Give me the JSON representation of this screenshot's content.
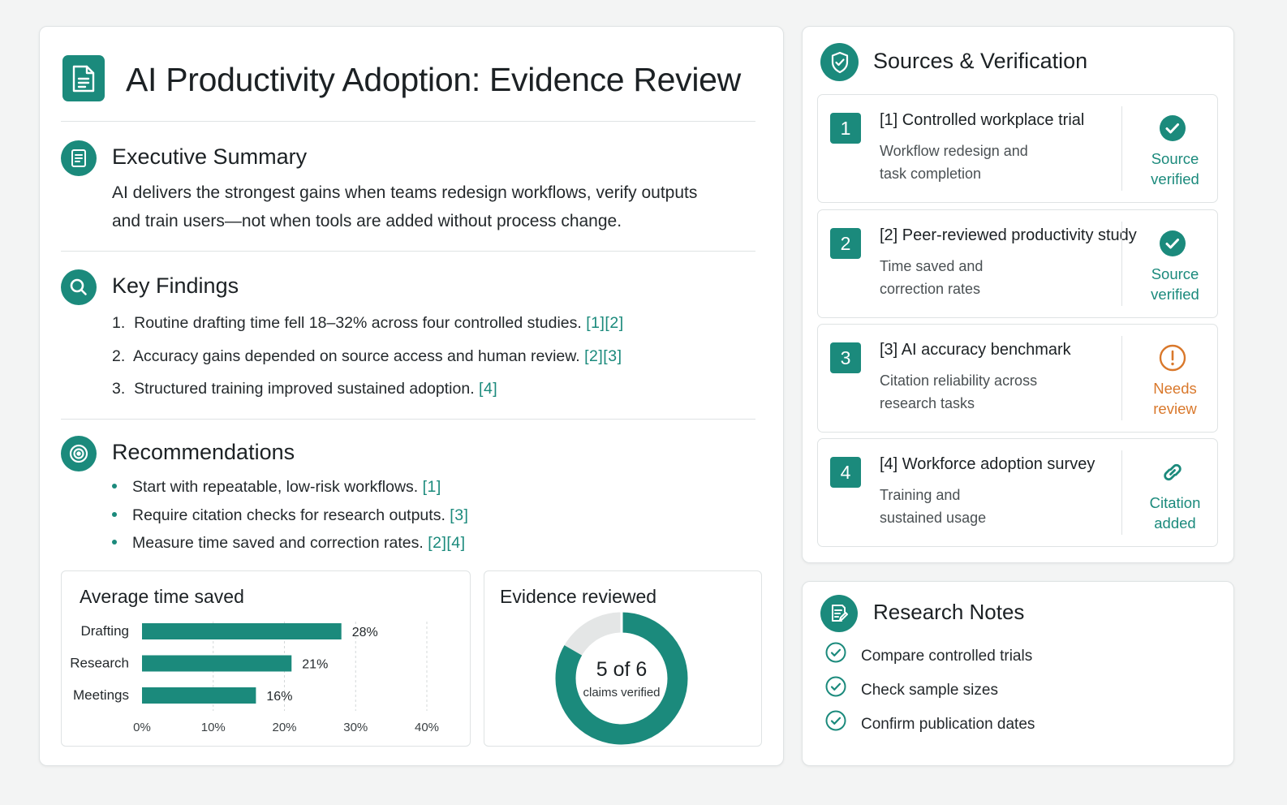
{
  "main": {
    "title": "AI Productivity Adoption: Evidence Review",
    "executive_summary": {
      "title": "Executive Summary",
      "lines": [
        "AI delivers the strongest gains when teams redesign workflows, verify outputs",
        "and train users—not when tools are added without process change."
      ]
    },
    "key_findings": {
      "title": "Key Findings",
      "items": [
        {
          "num": "1.",
          "text": "Routine drafting time fell 18–32% across four controlled studies.",
          "cite": "[1][2]"
        },
        {
          "num": "2.",
          "text": "Accuracy gains depended on source access and human review.",
          "cite": "[2][3]"
        },
        {
          "num": "3.",
          "text": "Structured training improved sustained adoption.",
          "cite": "[4]"
        }
      ]
    },
    "recommendations": {
      "title": "Recommendations",
      "items": [
        {
          "text": "Start with repeatable, low-risk workflows.",
          "cite": "[1]"
        },
        {
          "text": "Require citation checks for research outputs.",
          "cite": "[3]"
        },
        {
          "text": "Measure time saved and correction rates.",
          "cite": "[2][4]"
        }
      ]
    }
  },
  "chart_data": [
    {
      "type": "bar",
      "orientation": "horizontal",
      "title": "Average time saved",
      "categories": [
        "Drafting",
        "Research",
        "Meetings"
      ],
      "values": [
        28,
        21,
        16
      ],
      "value_labels": [
        "28%",
        "21%",
        "16%"
      ],
      "xlim": [
        0,
        40
      ],
      "xticks": [
        "0%",
        "10%",
        "20%",
        "30%",
        "40%"
      ],
      "grid": "vertical dashed",
      "color": "#1b8a7c"
    },
    {
      "type": "pie",
      "style": "donut",
      "title": "Evidence reviewed",
      "verified": 5,
      "total": 6,
      "center_value": "5 of 6",
      "center_label": "claims verified",
      "colors": {
        "verified": "#1b8a7c",
        "remaining": "#e4e6e6"
      }
    }
  ],
  "sources": {
    "title": "Sources & Verification",
    "items": [
      {
        "num": "1",
        "title": "[1] Controlled workplace trial",
        "desc1": "Workflow redesign and",
        "desc2": "task completion",
        "status1": "Source",
        "status2": "verified",
        "status_kind": "verified",
        "icon": "check-circle-icon"
      },
      {
        "num": "2",
        "title": "[2] Peer-reviewed productivity study",
        "desc1": "Time saved and",
        "desc2": "correction rates",
        "status1": "Source",
        "status2": "verified",
        "status_kind": "verified",
        "icon": "check-circle-icon"
      },
      {
        "num": "3",
        "title": "[3] AI accuracy benchmark",
        "desc1": "Citation reliability across",
        "desc2": "research tasks",
        "status1": "Needs",
        "status2": "review",
        "status_kind": "review",
        "icon": "alert-circle-icon"
      },
      {
        "num": "4",
        "title": "[4] Workforce adoption survey",
        "desc1": "Training and",
        "desc2": "sustained usage",
        "status1": "Citation",
        "status2": "added",
        "status_kind": "citation",
        "icon": "link-icon"
      }
    ]
  },
  "notes": {
    "title": "Research Notes",
    "items": [
      "Compare controlled trials",
      "Check sample sizes",
      "Confirm publication dates"
    ]
  },
  "colors": {
    "accent": "#1b8a7c",
    "warning": "#d9782b",
    "text": "#1c2124"
  }
}
